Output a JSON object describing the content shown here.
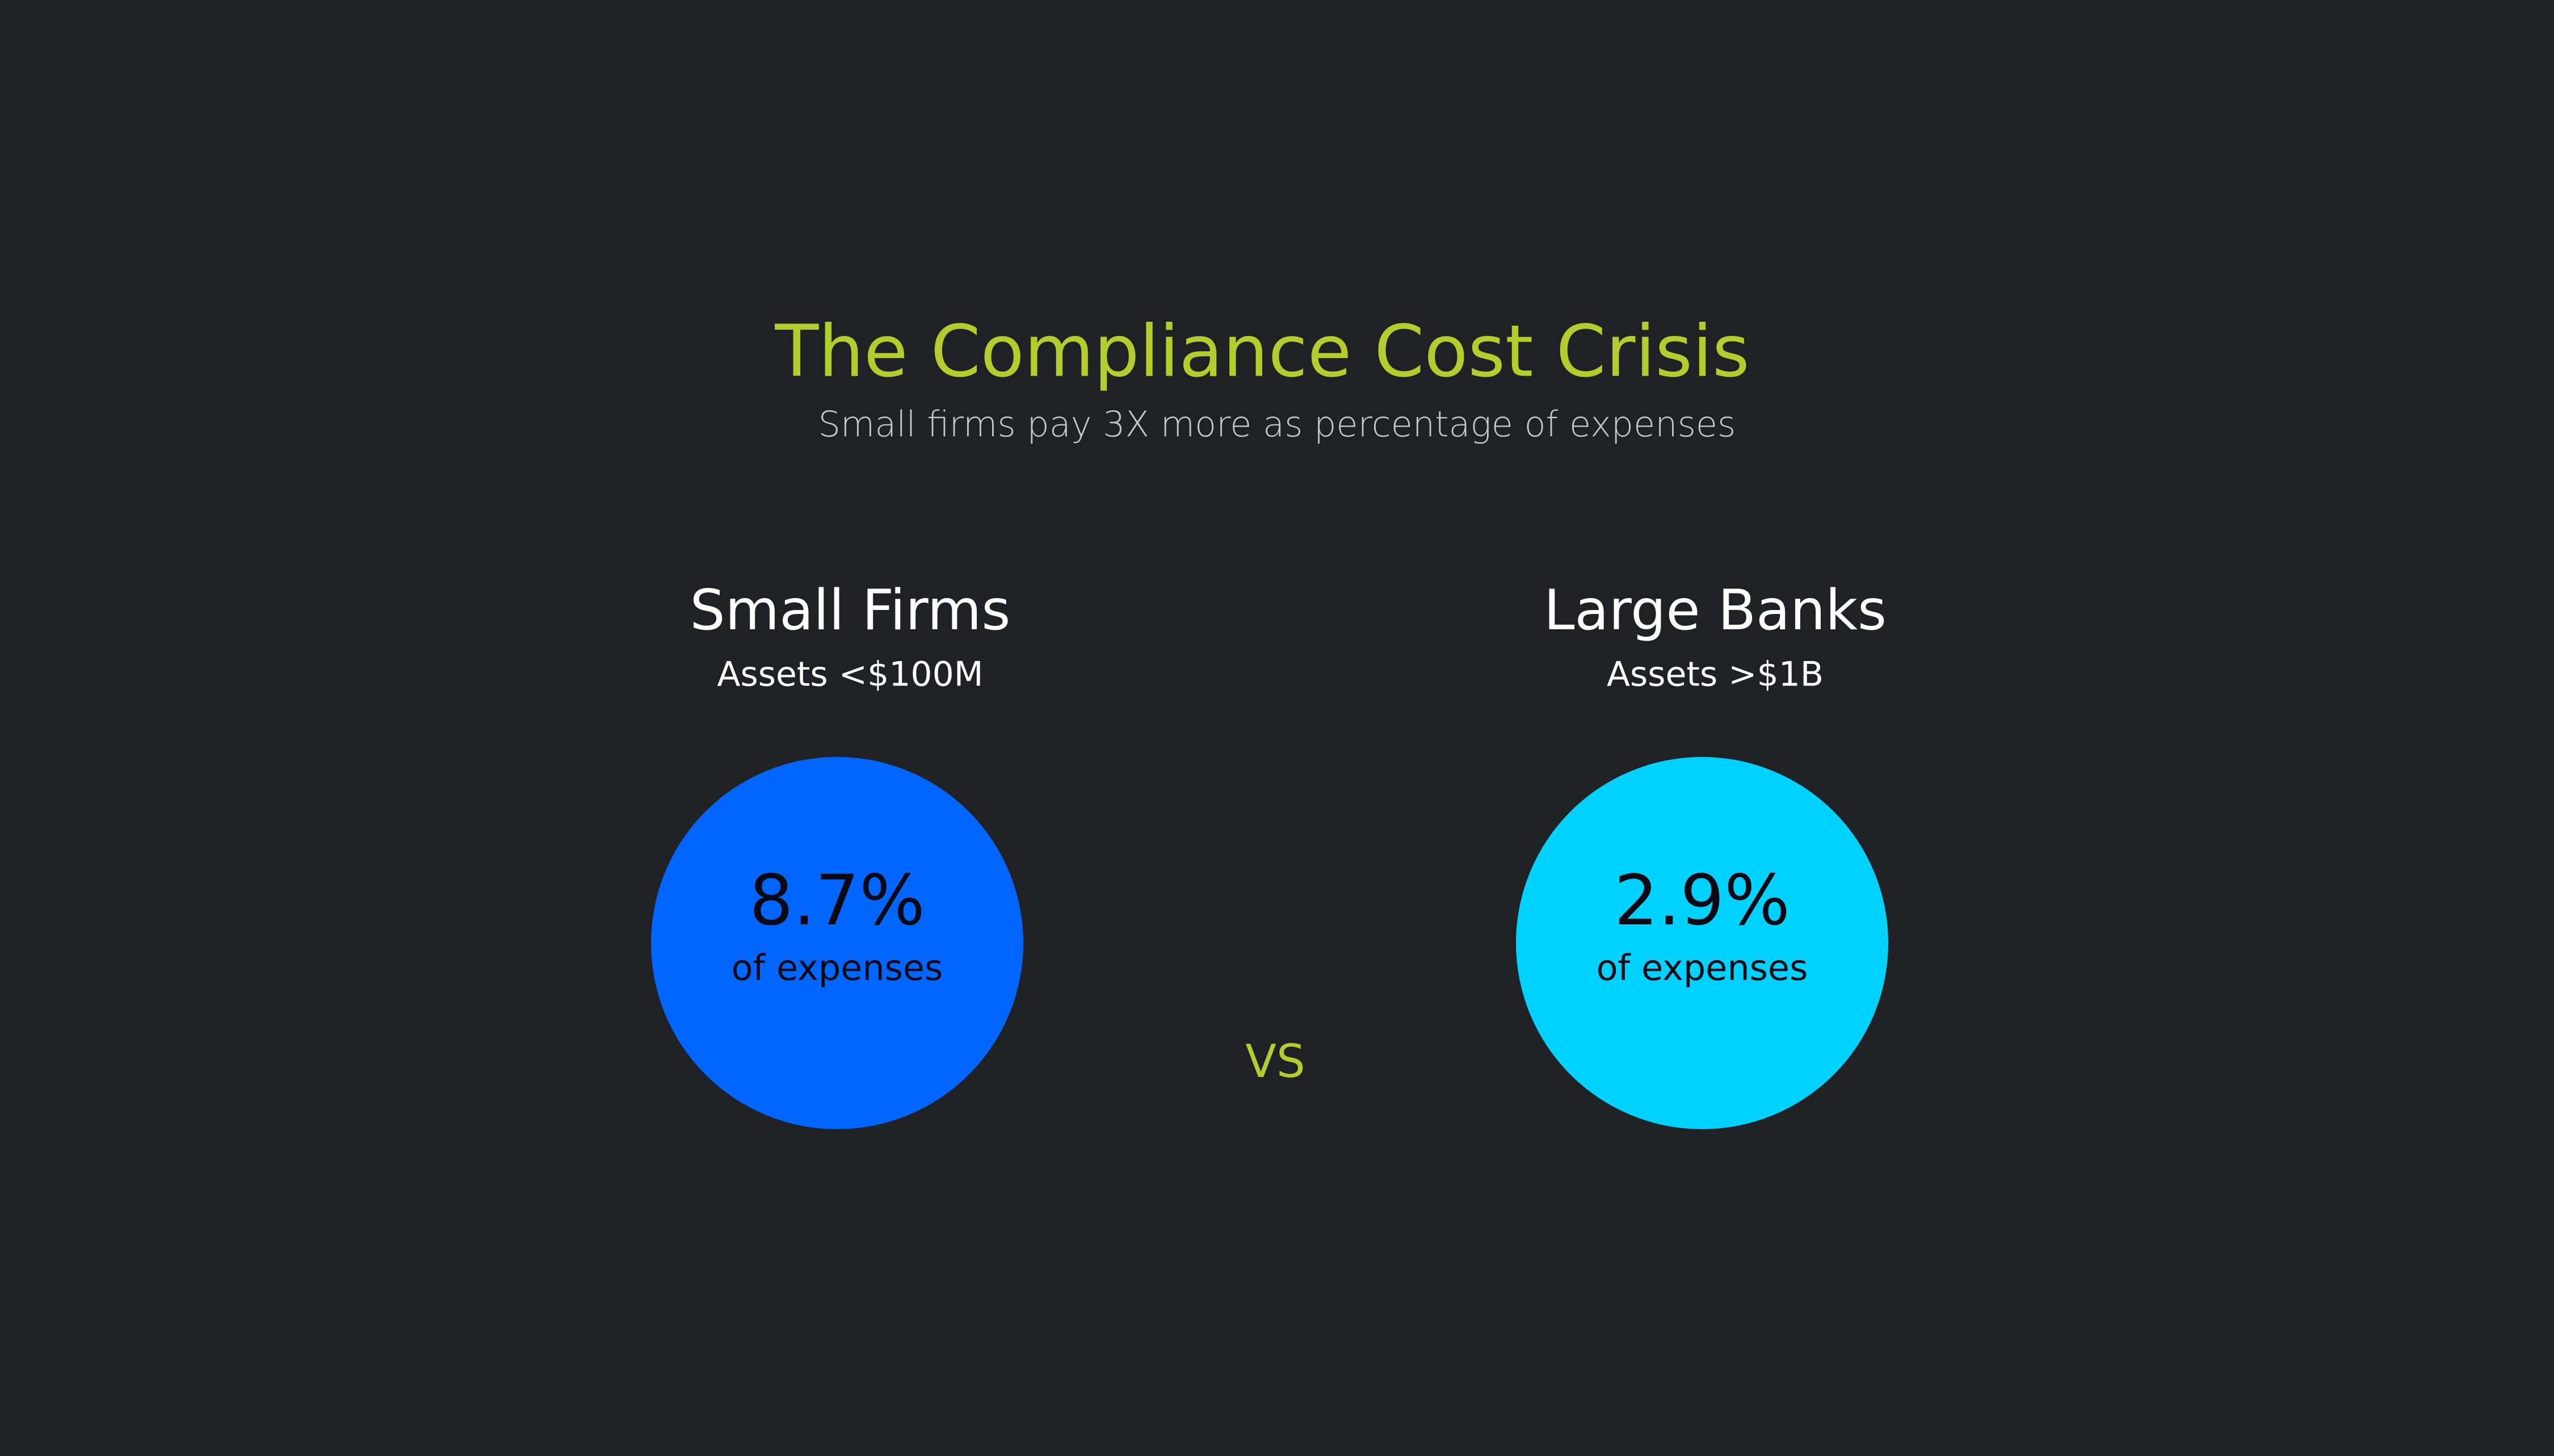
{
  "header": {
    "title": "The Compliance Cost Crisis",
    "subtitle": "Small firms pay 3X more as percentage of expenses"
  },
  "panels": [
    {
      "heading": "Small Firms",
      "subheading": "Assets <$100M",
      "value": "8.7%",
      "caption": "of expenses",
      "color": "#0066ff"
    },
    {
      "heading": "Large Banks",
      "subheading": "Assets >$1B",
      "value": "2.9%",
      "caption": "of expenses",
      "color": "#00d2ff"
    }
  ],
  "separator": "VS"
}
